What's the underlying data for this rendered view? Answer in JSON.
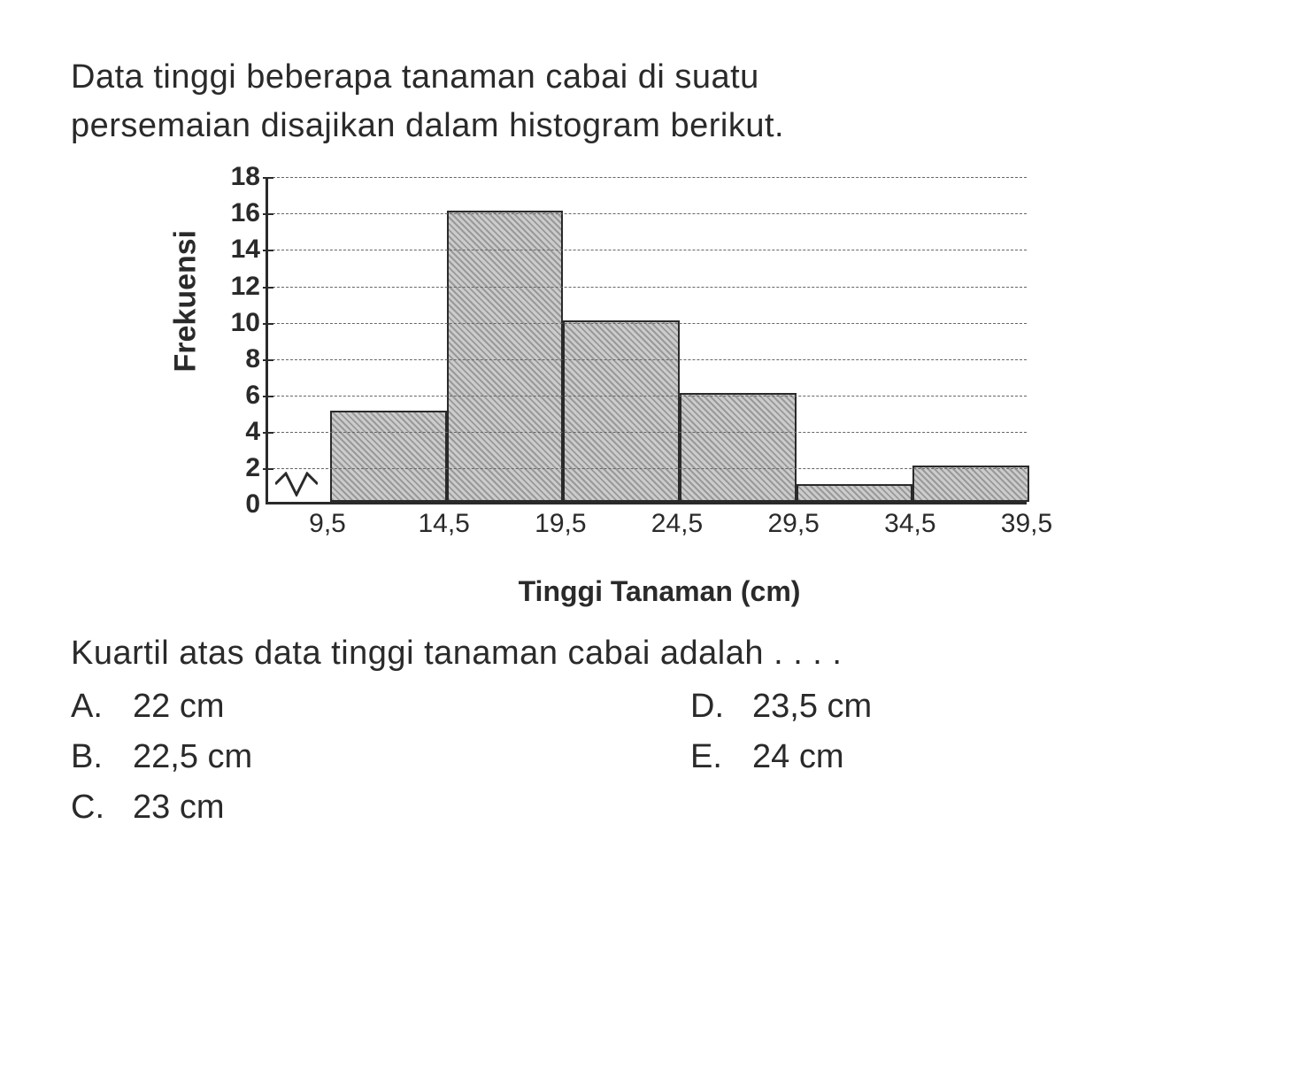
{
  "question": {
    "line1": "Data tinggi beberapa tanaman cabai di suatu",
    "line2": "persemaian disajikan dalam histogram berikut."
  },
  "chart": {
    "type": "bar",
    "ylabel": "Frekuensi",
    "xlabel": "Tinggi Tanaman (cm)",
    "ylim": [
      0,
      18
    ],
    "ytick_step": 2,
    "yticks": [
      0,
      2,
      4,
      6,
      8,
      10,
      12,
      14,
      16,
      18
    ],
    "x_boundaries": [
      9.5,
      14.5,
      19.5,
      24.5,
      29.5,
      34.5,
      39.5
    ],
    "x_labels": [
      "9,5",
      "14,5",
      "19,5",
      "24,5",
      "29,5",
      "34,5",
      "39,5"
    ],
    "bars": [
      {
        "label": "9,5–14,5",
        "value": 5
      },
      {
        "label": "14,5–19,5",
        "value": 16
      },
      {
        "label": "19,5–24,5",
        "value": 10
      },
      {
        "label": "24,5–29,5",
        "value": 6
      },
      {
        "label": "29,5–34,5",
        "value": 1
      },
      {
        "label": "34,5–39,5",
        "value": 2
      }
    ],
    "bar_color": "#b0b0b0",
    "bar_border": "#2a2a2a",
    "grid_color": "#666666",
    "axis_color": "#2a2a2a",
    "background_color": "#ffffff",
    "title_fontsize": 32,
    "label_fontsize": 30,
    "has_axis_break": true
  },
  "subquestion": "Kuartil atas data tinggi tanaman cabai adalah . . . .",
  "options": {
    "A": "22 cm",
    "B": "22,5 cm",
    "C": "23 cm",
    "D": "23,5 cm",
    "E": "24 cm"
  }
}
